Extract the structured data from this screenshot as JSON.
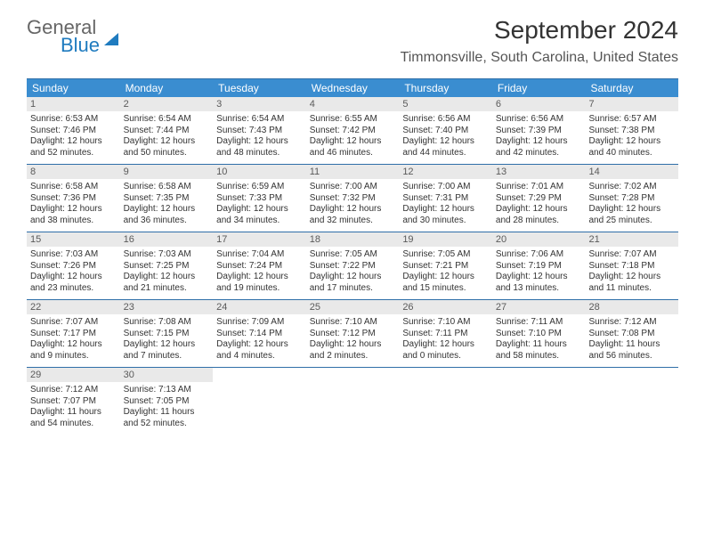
{
  "logo": {
    "text1": "General",
    "text2": "Blue"
  },
  "title": "September 2024",
  "location": "Timmonsville, South Carolina, United States",
  "header_color": "#3a8dd0",
  "rule_color": "#2f6fa8",
  "day_bg": "#e9e9e9",
  "day_names": [
    "Sunday",
    "Monday",
    "Tuesday",
    "Wednesday",
    "Thursday",
    "Friday",
    "Saturday"
  ],
  "weeks": [
    [
      {
        "n": "1",
        "sunrise": "Sunrise: 6:53 AM",
        "sunset": "Sunset: 7:46 PM",
        "day": "Daylight: 12 hours and 52 minutes."
      },
      {
        "n": "2",
        "sunrise": "Sunrise: 6:54 AM",
        "sunset": "Sunset: 7:44 PM",
        "day": "Daylight: 12 hours and 50 minutes."
      },
      {
        "n": "3",
        "sunrise": "Sunrise: 6:54 AM",
        "sunset": "Sunset: 7:43 PM",
        "day": "Daylight: 12 hours and 48 minutes."
      },
      {
        "n": "4",
        "sunrise": "Sunrise: 6:55 AM",
        "sunset": "Sunset: 7:42 PM",
        "day": "Daylight: 12 hours and 46 minutes."
      },
      {
        "n": "5",
        "sunrise": "Sunrise: 6:56 AM",
        "sunset": "Sunset: 7:40 PM",
        "day": "Daylight: 12 hours and 44 minutes."
      },
      {
        "n": "6",
        "sunrise": "Sunrise: 6:56 AM",
        "sunset": "Sunset: 7:39 PM",
        "day": "Daylight: 12 hours and 42 minutes."
      },
      {
        "n": "7",
        "sunrise": "Sunrise: 6:57 AM",
        "sunset": "Sunset: 7:38 PM",
        "day": "Daylight: 12 hours and 40 minutes."
      }
    ],
    [
      {
        "n": "8",
        "sunrise": "Sunrise: 6:58 AM",
        "sunset": "Sunset: 7:36 PM",
        "day": "Daylight: 12 hours and 38 minutes."
      },
      {
        "n": "9",
        "sunrise": "Sunrise: 6:58 AM",
        "sunset": "Sunset: 7:35 PM",
        "day": "Daylight: 12 hours and 36 minutes."
      },
      {
        "n": "10",
        "sunrise": "Sunrise: 6:59 AM",
        "sunset": "Sunset: 7:33 PM",
        "day": "Daylight: 12 hours and 34 minutes."
      },
      {
        "n": "11",
        "sunrise": "Sunrise: 7:00 AM",
        "sunset": "Sunset: 7:32 PM",
        "day": "Daylight: 12 hours and 32 minutes."
      },
      {
        "n": "12",
        "sunrise": "Sunrise: 7:00 AM",
        "sunset": "Sunset: 7:31 PM",
        "day": "Daylight: 12 hours and 30 minutes."
      },
      {
        "n": "13",
        "sunrise": "Sunrise: 7:01 AM",
        "sunset": "Sunset: 7:29 PM",
        "day": "Daylight: 12 hours and 28 minutes."
      },
      {
        "n": "14",
        "sunrise": "Sunrise: 7:02 AM",
        "sunset": "Sunset: 7:28 PM",
        "day": "Daylight: 12 hours and 25 minutes."
      }
    ],
    [
      {
        "n": "15",
        "sunrise": "Sunrise: 7:03 AM",
        "sunset": "Sunset: 7:26 PM",
        "day": "Daylight: 12 hours and 23 minutes."
      },
      {
        "n": "16",
        "sunrise": "Sunrise: 7:03 AM",
        "sunset": "Sunset: 7:25 PM",
        "day": "Daylight: 12 hours and 21 minutes."
      },
      {
        "n": "17",
        "sunrise": "Sunrise: 7:04 AM",
        "sunset": "Sunset: 7:24 PM",
        "day": "Daylight: 12 hours and 19 minutes."
      },
      {
        "n": "18",
        "sunrise": "Sunrise: 7:05 AM",
        "sunset": "Sunset: 7:22 PM",
        "day": "Daylight: 12 hours and 17 minutes."
      },
      {
        "n": "19",
        "sunrise": "Sunrise: 7:05 AM",
        "sunset": "Sunset: 7:21 PM",
        "day": "Daylight: 12 hours and 15 minutes."
      },
      {
        "n": "20",
        "sunrise": "Sunrise: 7:06 AM",
        "sunset": "Sunset: 7:19 PM",
        "day": "Daylight: 12 hours and 13 minutes."
      },
      {
        "n": "21",
        "sunrise": "Sunrise: 7:07 AM",
        "sunset": "Sunset: 7:18 PM",
        "day": "Daylight: 12 hours and 11 minutes."
      }
    ],
    [
      {
        "n": "22",
        "sunrise": "Sunrise: 7:07 AM",
        "sunset": "Sunset: 7:17 PM",
        "day": "Daylight: 12 hours and 9 minutes."
      },
      {
        "n": "23",
        "sunrise": "Sunrise: 7:08 AM",
        "sunset": "Sunset: 7:15 PM",
        "day": "Daylight: 12 hours and 7 minutes."
      },
      {
        "n": "24",
        "sunrise": "Sunrise: 7:09 AM",
        "sunset": "Sunset: 7:14 PM",
        "day": "Daylight: 12 hours and 4 minutes."
      },
      {
        "n": "25",
        "sunrise": "Sunrise: 7:10 AM",
        "sunset": "Sunset: 7:12 PM",
        "day": "Daylight: 12 hours and 2 minutes."
      },
      {
        "n": "26",
        "sunrise": "Sunrise: 7:10 AM",
        "sunset": "Sunset: 7:11 PM",
        "day": "Daylight: 12 hours and 0 minutes."
      },
      {
        "n": "27",
        "sunrise": "Sunrise: 7:11 AM",
        "sunset": "Sunset: 7:10 PM",
        "day": "Daylight: 11 hours and 58 minutes."
      },
      {
        "n": "28",
        "sunrise": "Sunrise: 7:12 AM",
        "sunset": "Sunset: 7:08 PM",
        "day": "Daylight: 11 hours and 56 minutes."
      }
    ],
    [
      {
        "n": "29",
        "sunrise": "Sunrise: 7:12 AM",
        "sunset": "Sunset: 7:07 PM",
        "day": "Daylight: 11 hours and 54 minutes."
      },
      {
        "n": "30",
        "sunrise": "Sunrise: 7:13 AM",
        "sunset": "Sunset: 7:05 PM",
        "day": "Daylight: 11 hours and 52 minutes."
      },
      null,
      null,
      null,
      null,
      null
    ]
  ]
}
